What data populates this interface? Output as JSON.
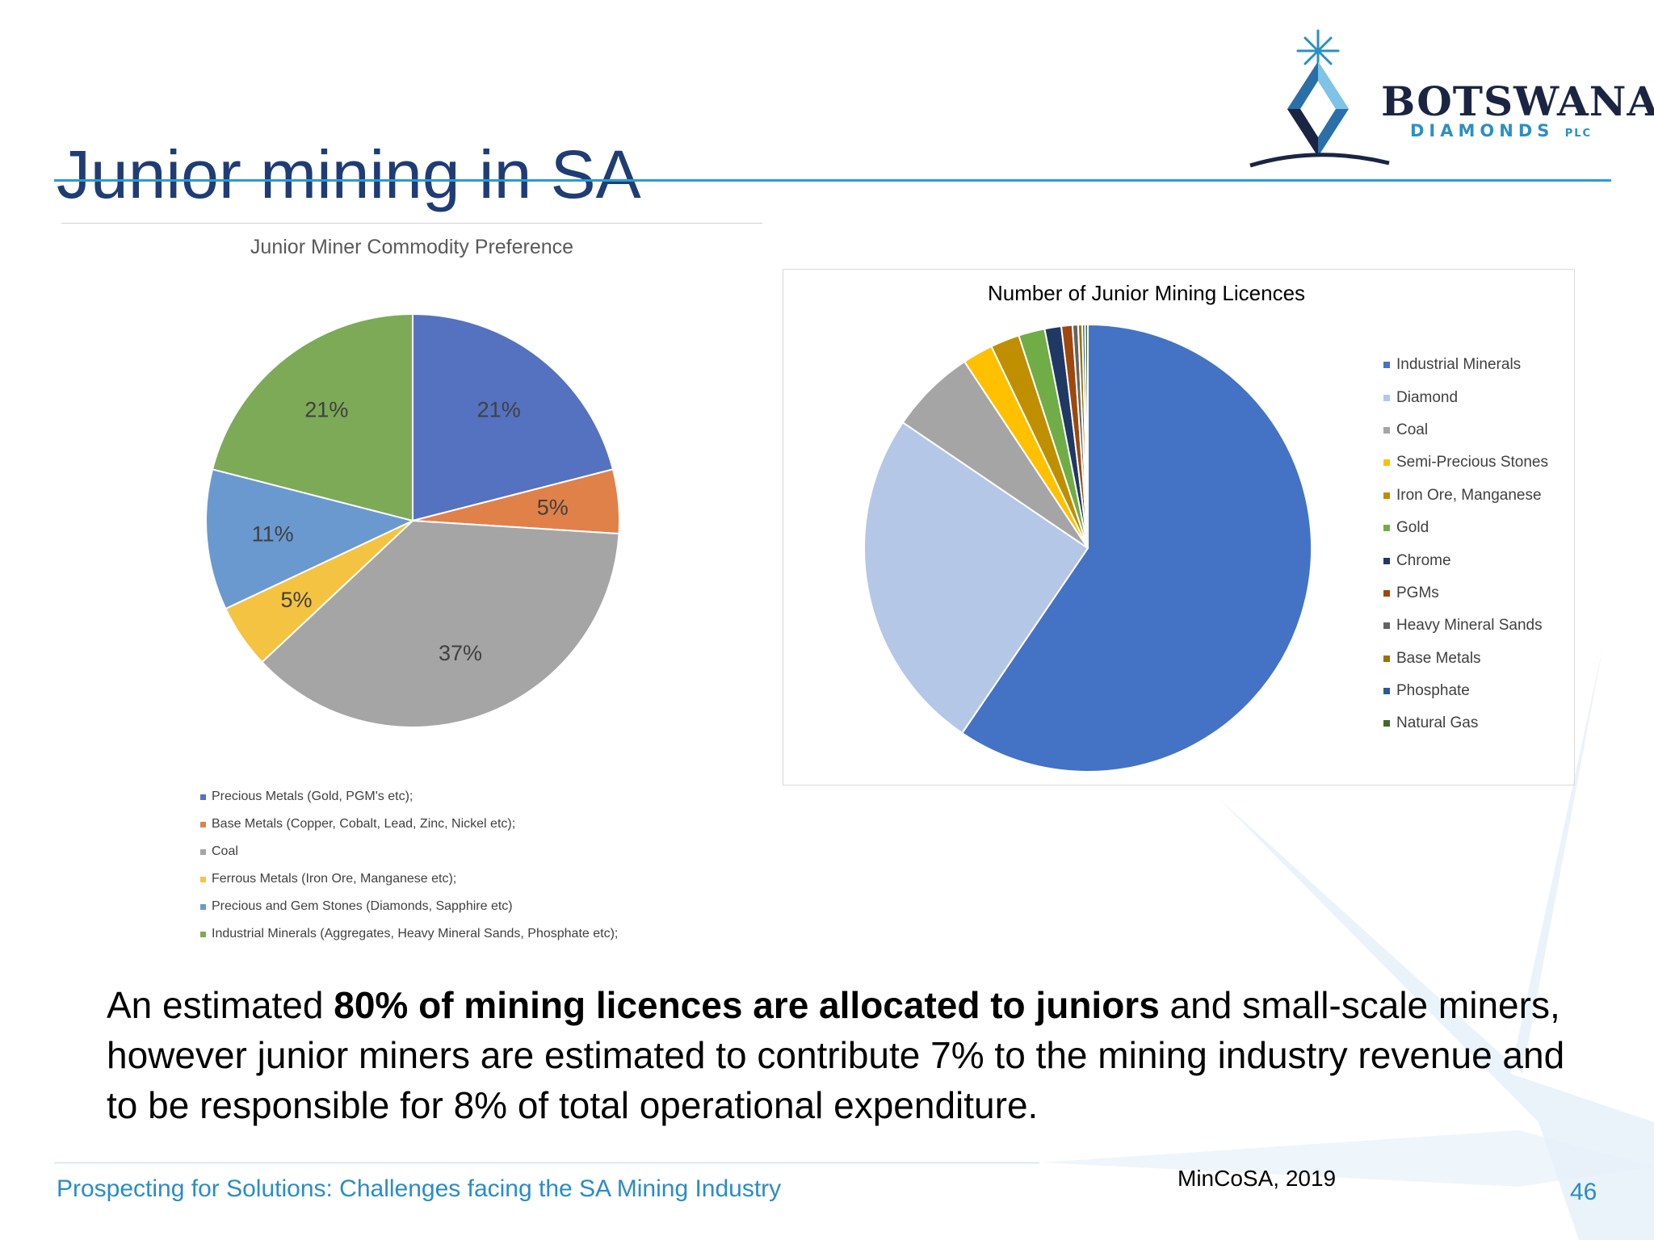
{
  "slide": {
    "title": "Junior mining in SA",
    "body_before": "An estimated ",
    "body_bold": "80% of mining licences are allocated to juniors",
    "body_after": " and small-scale miners, however junior miners are estimated to contribute 7% to the mining industry revenue and to be responsible for 8% of total operational expenditure.",
    "source": "MinCoSA, 2019",
    "footer": "Prospecting for Solutions: Challenges facing the SA Mining Industry",
    "page_number": "46"
  },
  "logo": {
    "wordmark": "BOTSWANA",
    "subtitle": "DIAMONDS",
    "suffix": "PLC",
    "icon": "diamond-star-icon",
    "colors": {
      "navy": "#1b2442",
      "blue": "#2b8fc4"
    }
  },
  "chart_data": [
    {
      "type": "pie",
      "title": "Junior Miner Commodity Preference",
      "categories": [
        "Precious Metals (Gold, PGM's etc);",
        "Base Metals (Copper, Cobalt, Lead, Zinc, Nickel etc);",
        "Coal",
        "Ferrous Metals (Iron Ore, Manganese etc);",
        "Precious and Gem Stones (Diamonds, Sapphire etc)",
        "Industrial Minerals (Aggregates, Heavy Mineral Sands, Phosphate etc);"
      ],
      "values": [
        21,
        5,
        37,
        5,
        11,
        21
      ],
      "data_labels": [
        "21%",
        "5%",
        "37%",
        "5%",
        "11%",
        "21%"
      ],
      "colors": [
        "#5472c0",
        "#e0814a",
        "#a5a5a5",
        "#f5c342",
        "#6a99d0",
        "#7daa57"
      ],
      "legend": "bottom"
    },
    {
      "type": "pie",
      "title": "Number of Junior Mining Licences",
      "categories": [
        "Industrial Minerals",
        "Diamond",
        "Coal",
        "Semi-Precious Stones",
        "Iron Ore, Manganese",
        "Gold",
        "Chrome",
        "PGMs",
        "Heavy Mineral Sands",
        "Base Metals",
        "Phosphate",
        "Natural Gas"
      ],
      "values": [
        59.5,
        25.0,
        6.2,
        2.2,
        2.1,
        1.9,
        1.2,
        0.8,
        0.4,
        0.3,
        0.2,
        0.2
      ],
      "colors": [
        "#4472c4",
        "#b4c7e7",
        "#a5a5a5",
        "#ffc000",
        "#bf8f00",
        "#70ad47",
        "#203864",
        "#9e480e",
        "#636363",
        "#997300",
        "#255e91",
        "#43682b"
      ],
      "legend": "right"
    }
  ]
}
